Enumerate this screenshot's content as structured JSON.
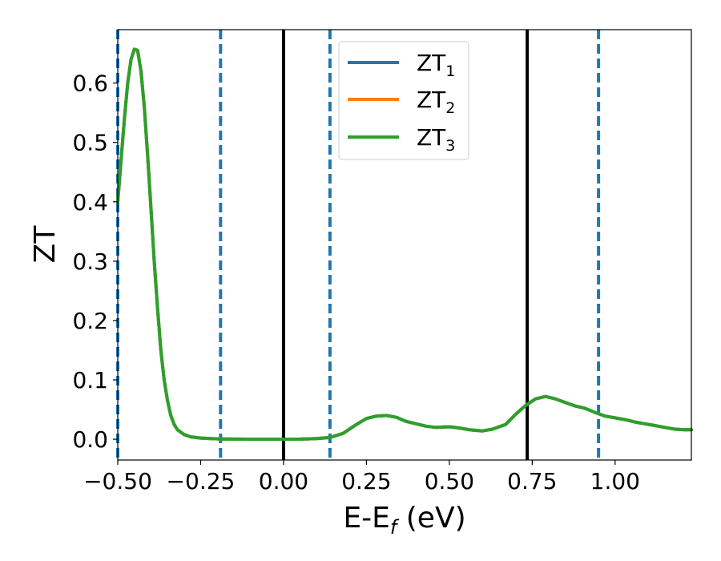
{
  "chart_data": {
    "type": "line",
    "xlabel": "E-E",
    "xlabel_sub": "f",
    "xlabel_unit": " (eV)",
    "ylabel": "ZT",
    "xlim": [
      -0.5,
      1.23
    ],
    "ylim": [
      -0.035,
      0.69
    ],
    "grid": false,
    "legend_position": "top-center",
    "xticks": [
      -0.5,
      -0.25,
      0.0,
      0.25,
      0.5,
      0.75,
      1.0
    ],
    "xtick_labels": [
      "−0.50",
      "−0.25",
      "0.00",
      "0.25",
      "0.50",
      "0.75",
      "1.00"
    ],
    "yticks": [
      0.0,
      0.1,
      0.2,
      0.3,
      0.4,
      0.5,
      0.6
    ],
    "ytick_labels": [
      "0.0",
      "0.1",
      "0.2",
      "0.3",
      "0.4",
      "0.5",
      "0.6"
    ],
    "series": [
      {
        "name": "ZT",
        "name_sub": "1",
        "color": "#1f77b4",
        "x": [
          -0.5,
          -0.49,
          -0.48,
          -0.47,
          -0.46,
          -0.45,
          -0.44,
          -0.43,
          -0.42,
          -0.41,
          -0.4,
          -0.39,
          -0.38,
          -0.37,
          -0.36,
          -0.35,
          -0.34,
          -0.33,
          -0.32,
          -0.3,
          -0.28,
          -0.25,
          -0.22,
          -0.19,
          -0.15,
          -0.1,
          -0.05,
          0.0,
          0.05,
          0.1,
          0.14,
          0.18,
          0.22,
          0.25,
          0.28,
          0.31,
          0.34,
          0.37,
          0.4,
          0.43,
          0.46,
          0.5,
          0.53,
          0.56,
          0.6,
          0.63,
          0.67,
          0.7,
          0.73,
          0.76,
          0.79,
          0.82,
          0.85,
          0.88,
          0.91,
          0.94,
          0.97,
          1.0,
          1.03,
          1.06,
          1.09,
          1.12,
          1.15,
          1.18,
          1.21,
          1.23
        ],
        "y": [
          0.4,
          0.47,
          0.54,
          0.6,
          0.64,
          0.657,
          0.655,
          0.62,
          0.56,
          0.48,
          0.39,
          0.3,
          0.22,
          0.15,
          0.1,
          0.065,
          0.04,
          0.025,
          0.016,
          0.008,
          0.004,
          0.002,
          0.001,
          0.0005,
          0.0002,
          0.0001,
          0.0001,
          0.0001,
          0.0003,
          0.001,
          0.003,
          0.01,
          0.025,
          0.035,
          0.039,
          0.04,
          0.037,
          0.03,
          0.026,
          0.022,
          0.02,
          0.021,
          0.019,
          0.016,
          0.014,
          0.017,
          0.025,
          0.042,
          0.057,
          0.068,
          0.072,
          0.068,
          0.062,
          0.056,
          0.052,
          0.045,
          0.039,
          0.036,
          0.033,
          0.029,
          0.026,
          0.023,
          0.02,
          0.017,
          0.016,
          0.016
        ]
      },
      {
        "name": "ZT",
        "name_sub": "2",
        "color": "#ff7f0e",
        "x": [
          -0.5,
          -0.49,
          -0.48,
          -0.47,
          -0.46,
          -0.45,
          -0.44,
          -0.43,
          -0.42,
          -0.41,
          -0.4,
          -0.39,
          -0.38,
          -0.37,
          -0.36,
          -0.35,
          -0.34,
          -0.33,
          -0.32,
          -0.3,
          -0.28,
          -0.25,
          -0.22,
          -0.19,
          -0.15,
          -0.1,
          -0.05,
          0.0,
          0.05,
          0.1,
          0.14,
          0.18,
          0.22,
          0.25,
          0.28,
          0.31,
          0.34,
          0.37,
          0.4,
          0.43,
          0.46,
          0.5,
          0.53,
          0.56,
          0.6,
          0.63,
          0.67,
          0.7,
          0.73,
          0.76,
          0.79,
          0.82,
          0.85,
          0.88,
          0.91,
          0.94,
          0.97,
          1.0,
          1.03,
          1.06,
          1.09,
          1.12,
          1.15,
          1.18,
          1.21,
          1.23
        ],
        "y": [
          0.4,
          0.47,
          0.54,
          0.6,
          0.64,
          0.657,
          0.655,
          0.62,
          0.56,
          0.48,
          0.39,
          0.3,
          0.22,
          0.15,
          0.1,
          0.065,
          0.04,
          0.025,
          0.016,
          0.008,
          0.004,
          0.002,
          0.001,
          0.0005,
          0.0002,
          0.0001,
          0.0001,
          0.0001,
          0.0003,
          0.001,
          0.003,
          0.01,
          0.025,
          0.035,
          0.039,
          0.04,
          0.037,
          0.03,
          0.026,
          0.022,
          0.02,
          0.021,
          0.019,
          0.016,
          0.014,
          0.017,
          0.025,
          0.042,
          0.057,
          0.068,
          0.072,
          0.068,
          0.062,
          0.056,
          0.052,
          0.045,
          0.039,
          0.036,
          0.033,
          0.029,
          0.026,
          0.023,
          0.02,
          0.017,
          0.016,
          0.016
        ]
      },
      {
        "name": "ZT",
        "name_sub": "3",
        "color": "#2ca02c",
        "x": [
          -0.5,
          -0.49,
          -0.48,
          -0.47,
          -0.46,
          -0.45,
          -0.44,
          -0.43,
          -0.42,
          -0.41,
          -0.4,
          -0.39,
          -0.38,
          -0.37,
          -0.36,
          -0.35,
          -0.34,
          -0.33,
          -0.32,
          -0.3,
          -0.28,
          -0.25,
          -0.22,
          -0.19,
          -0.15,
          -0.1,
          -0.05,
          0.0,
          0.05,
          0.1,
          0.14,
          0.18,
          0.22,
          0.25,
          0.28,
          0.31,
          0.34,
          0.37,
          0.4,
          0.43,
          0.46,
          0.5,
          0.53,
          0.56,
          0.6,
          0.63,
          0.67,
          0.7,
          0.73,
          0.76,
          0.79,
          0.82,
          0.85,
          0.88,
          0.91,
          0.94,
          0.97,
          1.0,
          1.03,
          1.06,
          1.09,
          1.12,
          1.15,
          1.18,
          1.21,
          1.23
        ],
        "y": [
          0.4,
          0.47,
          0.54,
          0.6,
          0.64,
          0.657,
          0.655,
          0.62,
          0.56,
          0.48,
          0.39,
          0.3,
          0.22,
          0.15,
          0.1,
          0.065,
          0.04,
          0.025,
          0.016,
          0.008,
          0.004,
          0.002,
          0.001,
          0.0005,
          0.0002,
          0.0001,
          0.0001,
          0.0001,
          0.0003,
          0.001,
          0.003,
          0.01,
          0.025,
          0.035,
          0.039,
          0.04,
          0.037,
          0.03,
          0.026,
          0.022,
          0.02,
          0.021,
          0.019,
          0.016,
          0.014,
          0.017,
          0.025,
          0.042,
          0.057,
          0.068,
          0.072,
          0.068,
          0.062,
          0.056,
          0.052,
          0.045,
          0.039,
          0.036,
          0.033,
          0.029,
          0.026,
          0.023,
          0.02,
          0.017,
          0.016,
          0.016
        ]
      }
    ],
    "vlines": [
      {
        "x": -0.5,
        "style": "dashed",
        "color": "#1f77b4"
      },
      {
        "x": -0.19,
        "style": "dashed",
        "color": "#1f77b4"
      },
      {
        "x": 0.0,
        "style": "solid",
        "color": "#000000"
      },
      {
        "x": 0.14,
        "style": "dashed",
        "color": "#1f77b4"
      },
      {
        "x": 0.735,
        "style": "solid",
        "color": "#000000"
      },
      {
        "x": 0.95,
        "style": "dashed",
        "color": "#1f77b4"
      }
    ]
  }
}
